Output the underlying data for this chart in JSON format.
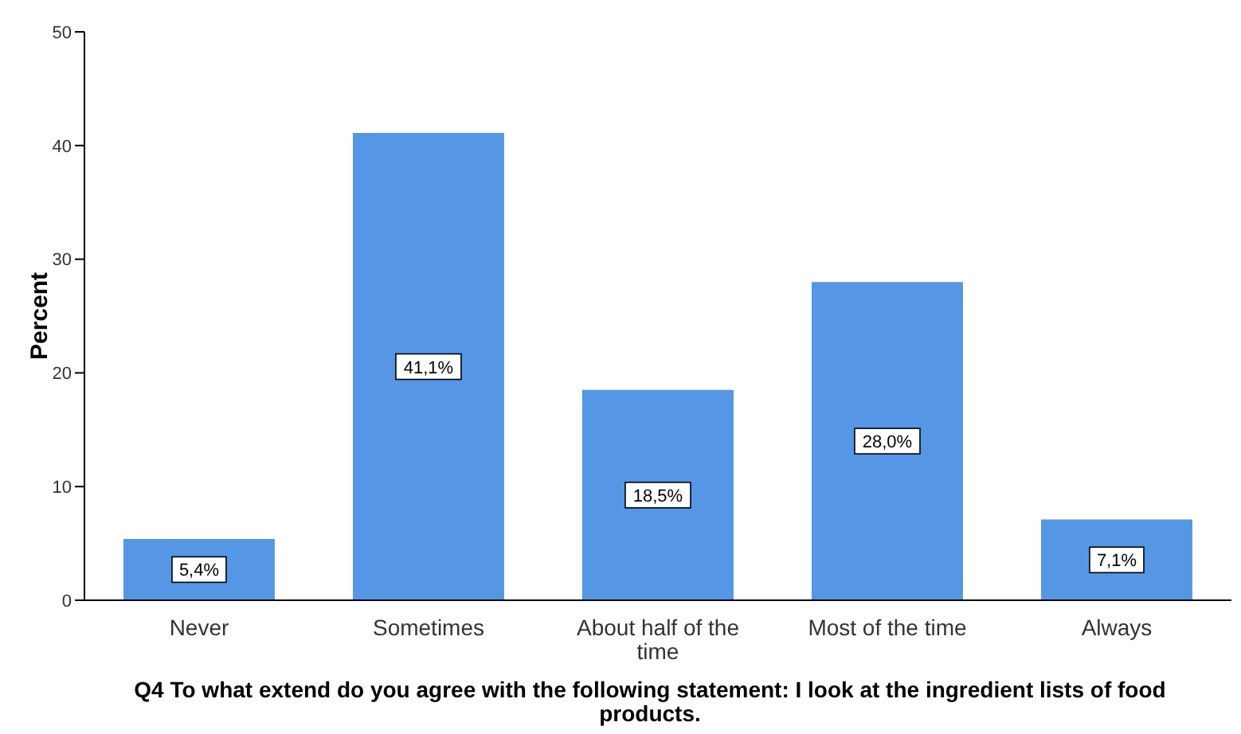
{
  "chart_data": {
    "type": "bar",
    "xlabel": "Q4 To what extend do you agree with the following statement: I look at the ingredient lists of food products.",
    "ylabel": "Percent",
    "categories": [
      "Never",
      "Sometimes",
      "About half of the time",
      "Most of the time",
      "Always"
    ],
    "values": [
      5.4,
      41.1,
      18.5,
      28.0,
      7.1
    ],
    "value_labels": [
      "5,4%",
      "41,1%",
      "18,5%",
      "28,0%",
      "7,1%"
    ],
    "color": "#5596e5",
    "ylim": [
      0,
      50
    ],
    "yticks": [
      0,
      10,
      20,
      30,
      40,
      50
    ],
    "grid": false,
    "legend": false
  }
}
